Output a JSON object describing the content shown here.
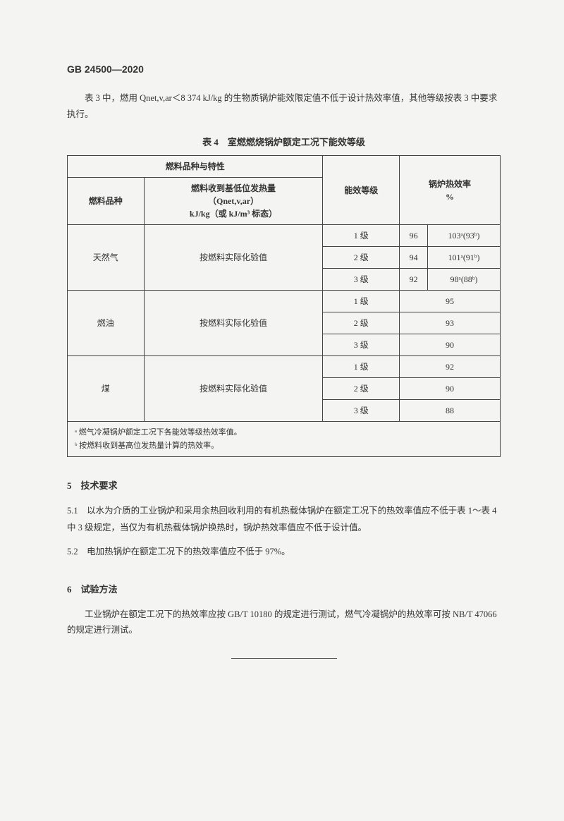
{
  "header": "GB 24500—2020",
  "intro": "表 3 中，燃用 Qnet,v,ar＜8 374 kJ/kg 的生物质锅炉能效限定值不低于设计热效率值，其他等级按表 3 中要求执行。",
  "table_title": "表 4　室燃燃烧锅炉额定工况下能效等级",
  "columns": {
    "group_header": "燃料品种与特性",
    "c1": "燃料品种",
    "c2_line1": "燃料收到基低位发热量",
    "c2_line2": "（Qnet,v,ar）",
    "c2_line3": "kJ/kg（或 kJ/m³ 标态）",
    "c3": "能效等级",
    "c4_line1": "锅炉热效率",
    "c4_line2": "%"
  },
  "rows": [
    {
      "fuel": "天然气",
      "spec": "按燃料实际化验值",
      "levels": [
        {
          "lv": "1 级",
          "v1": "96",
          "v2": "103ᵃ(93ᵇ)"
        },
        {
          "lv": "2 级",
          "v1": "94",
          "v2": "101ᵃ(91ᵇ)"
        },
        {
          "lv": "3 级",
          "v1": "92",
          "v2": "98ᵃ(88ᵇ)"
        }
      ],
      "split": true
    },
    {
      "fuel": "燃油",
      "spec": "按燃料实际化验值",
      "levels": [
        {
          "lv": "1 级",
          "v": "95"
        },
        {
          "lv": "2 级",
          "v": "93"
        },
        {
          "lv": "3 级",
          "v": "90"
        }
      ],
      "split": false
    },
    {
      "fuel": "煤",
      "spec": "按燃料实际化验值",
      "levels": [
        {
          "lv": "1 级",
          "v": "92"
        },
        {
          "lv": "2 级",
          "v": "90"
        },
        {
          "lv": "3 级",
          "v": "88"
        }
      ],
      "split": false
    }
  ],
  "footnote_a": "ᵃ 燃气冷凝锅炉额定工况下各能效等级热效率值。",
  "footnote_b": "ᵇ 按燃料收到基高位发热量计算的热效率。",
  "sec5_title": "5　技术要求",
  "sec5_1": "5.1　以水为介质的工业锅炉和采用余热回收利用的有机热载体锅炉在额定工况下的热效率值应不低于表 1～表 4 中 3 级规定，当仅为有机热载体锅炉换热时，锅炉热效率值应不低于设计值。",
  "sec5_2": "5.2　电加热锅炉在额定工况下的热效率值应不低于 97%。",
  "sec6_title": "6　试验方法",
  "sec6_body": "工业锅炉在额定工况下的热效率应按 GB/T 10180 的规定进行测试，燃气冷凝锅炉的热效率可按 NB/T 47066 的规定进行测试。"
}
